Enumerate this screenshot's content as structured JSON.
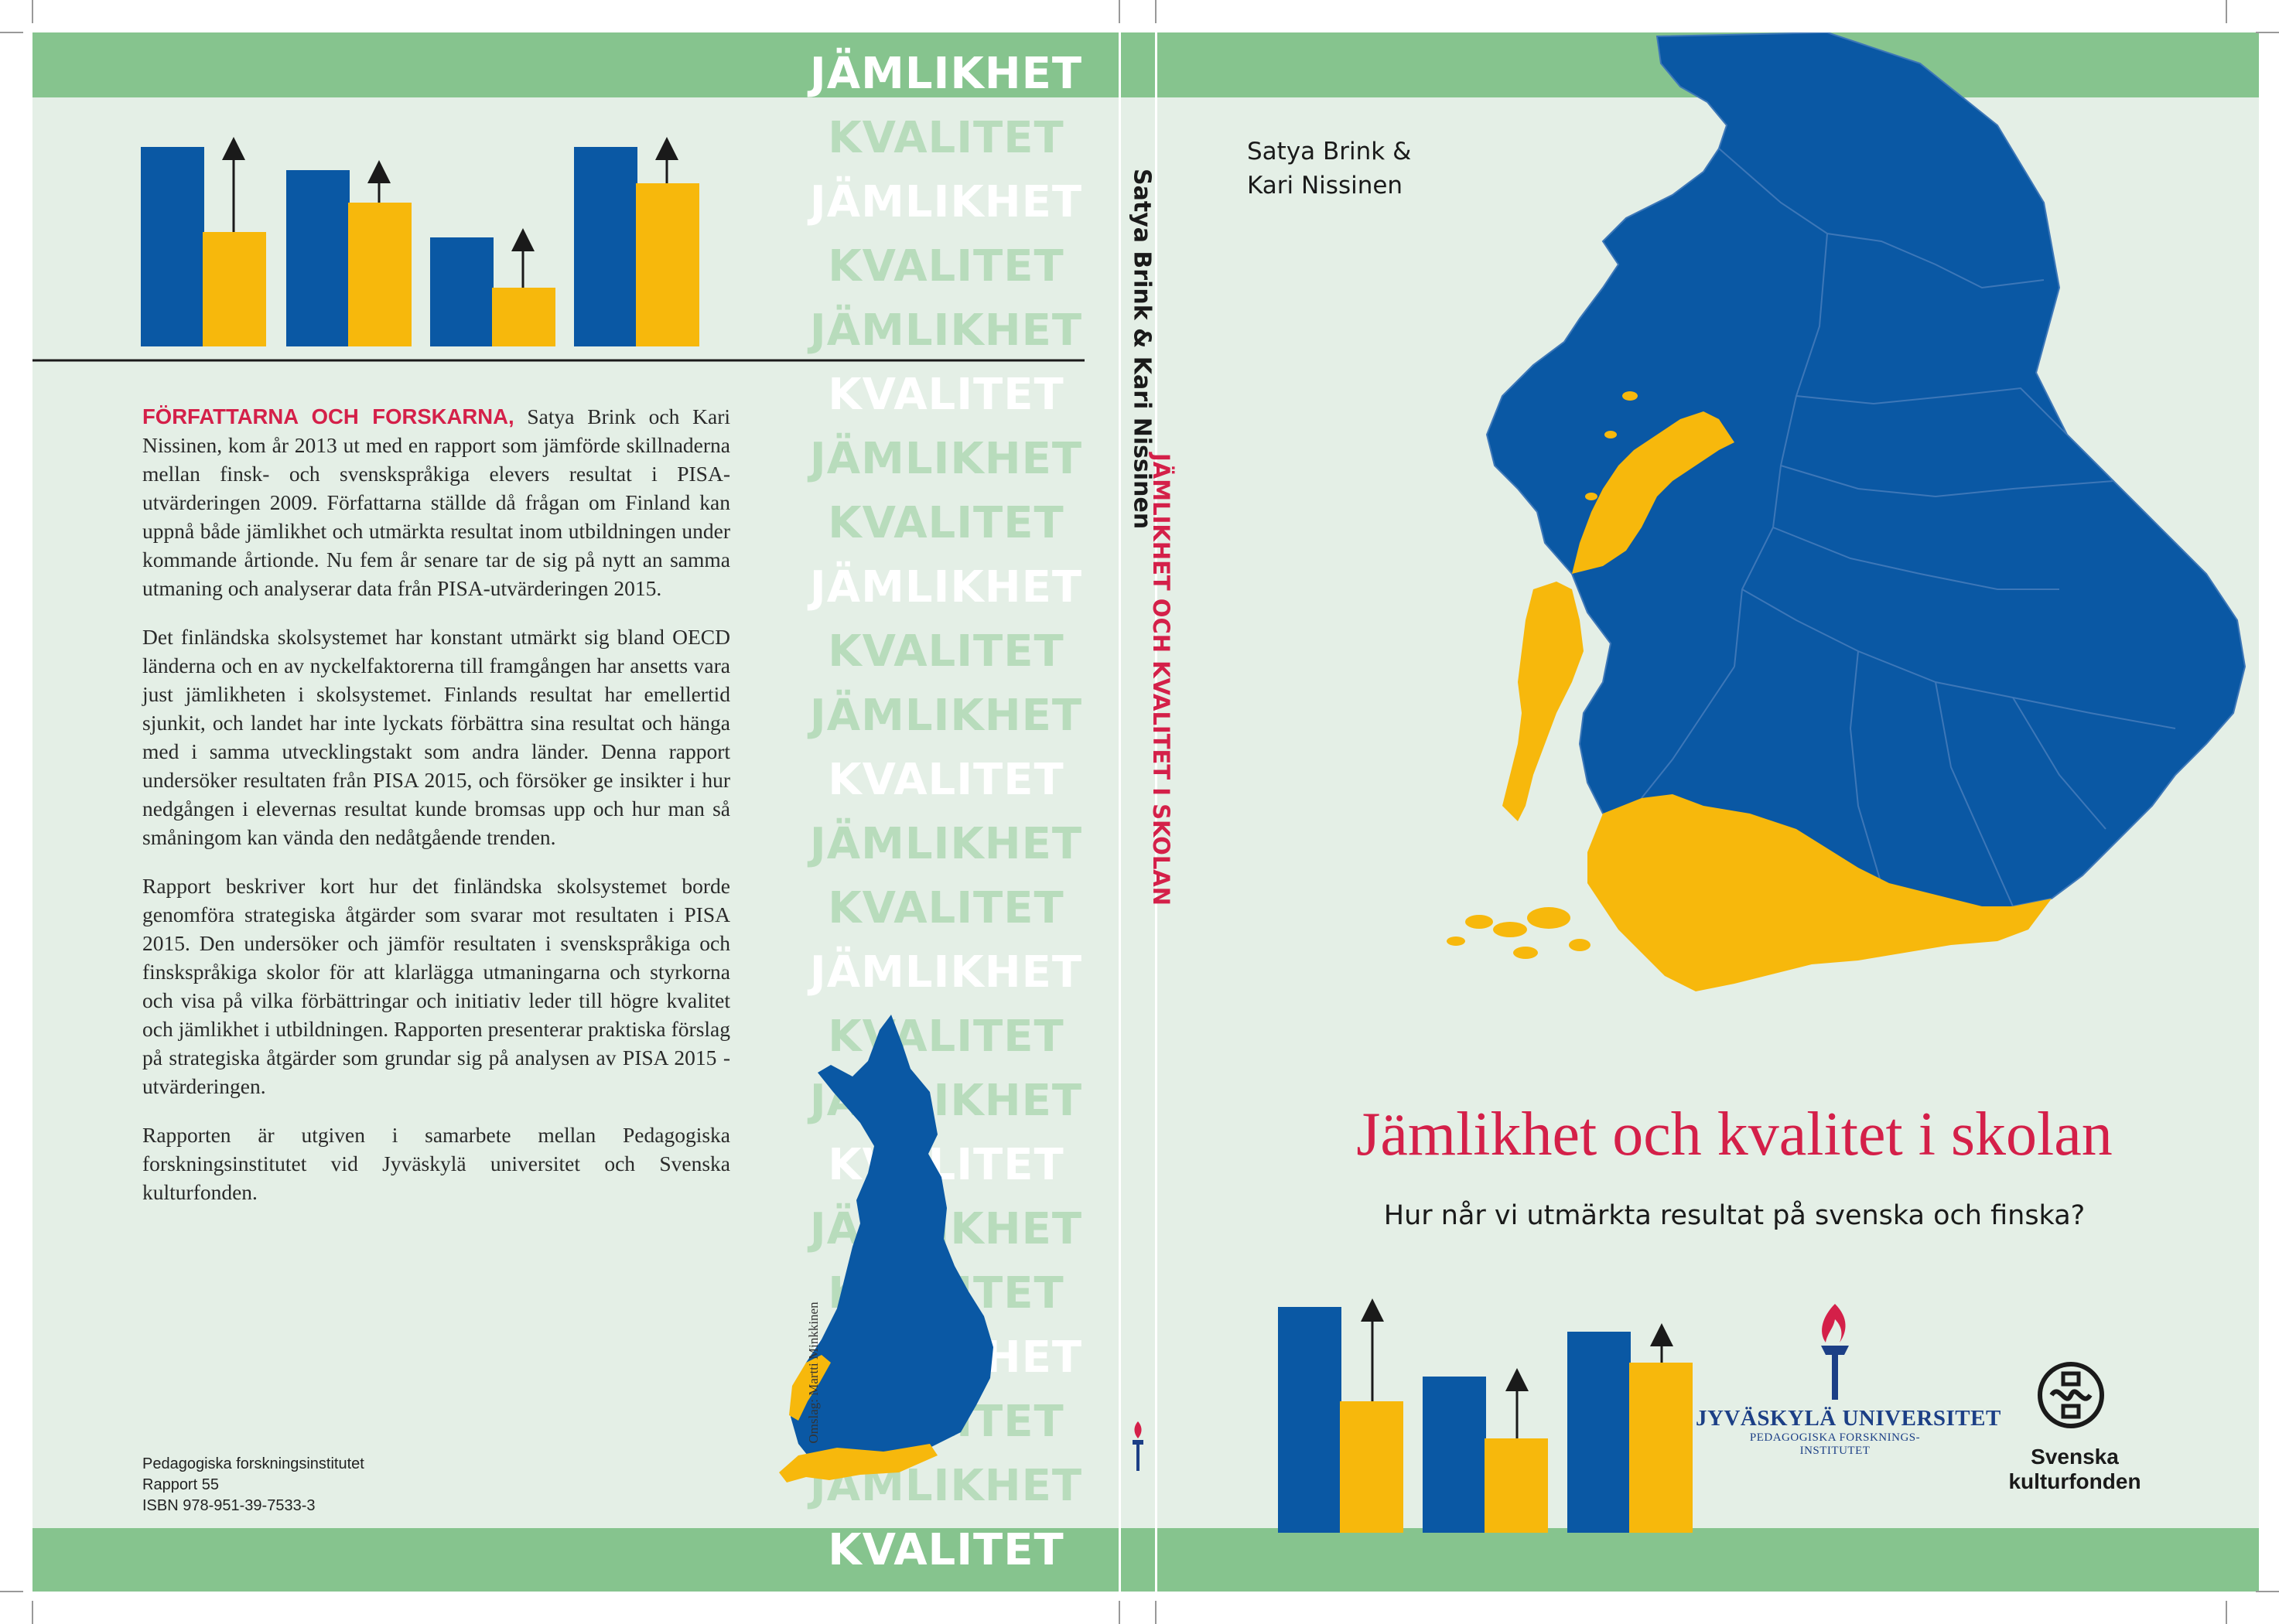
{
  "back": {
    "words": [
      "JÄMLIKHET",
      "KVALITET",
      "JÄMLIKHET",
      "KVALITET",
      "JÄMLIKHET",
      "KVALITET",
      "JÄMLIKHET",
      "KVALITET",
      "JÄMLIKHET",
      "KVALITET",
      "JÄMLIKHET",
      "KVALITET",
      "JÄMLIKHET",
      "KVALITET",
      "JÄMLIKHET",
      "KVALITET",
      "JÄMLIKHET",
      "KVALITET",
      "JÄMLIKHET",
      "KVALITET",
      "JÄMLIKHET",
      "KVALITET",
      "JÄMLIKHET",
      "KVALITET"
    ],
    "lead": "FÖRFATTARNA OCH FORSKARNA,",
    "p1_rest": " Satya Brink och Kari Nissinen, kom år 2013 ut med en rapport som jämförde skillnaderna mellan finsk- och svenskspråkiga elevers resultat i PISA-utvärderingen 2009. Författarna ställde då frågan om Finland kan uppnå både jämlikhet och utmärkta resultat inom utbildningen under kommande årtionde. Nu fem år senare tar de sig på nytt an samma utmaning och analyserar data från PISA-utvärderingen 2015.",
    "p2": "Det finländska skolsystemet har konstant utmärkt sig bland OECD länderna och en av nyckelfaktorerna till framgången har ansetts vara just jämlikheten i skolsystemet. Finlands resultat har emellertid sjunkit, och landet har inte lyckats förbättra sina resultat och hänga med i samma utvecklingstakt som andra länder. Denna rapport undersöker resultaten från PISA 2015, och försöker ge insikter i hur nedgången i elevernas resultat kunde bromsas upp och hur man så småningom kan vända den nedåtgående trenden.",
    "p3": "Rapport beskriver kort hur det finländska skolsystemet borde genomföra strategiska åtgärder som svarar mot resultaten i PISA 2015. Den undersöker och jämför resultaten i svenskspråkiga och finskspråkiga skolor för att klarlägga utmaningarna och styrkorna och visa på vilka förbättringar och initiativ leder till högre kvalitet och jämlikhet i utbildningen. Rapporten presenterar praktiska förslag på strategiska åtgärder som grundar sig på analysen av PISA 2015 -utvärderingen.",
    "p4": "Rapporten är utgiven i samarbete mellan Pedagogiska forskningsinstitutet vid Jyväskylä universitet och Svenska kulturfonden.",
    "publisher_lines": [
      "Pedagogiska forskningsinstitutet",
      "Rapport 55",
      "ISBN 978-951-39-7533-3"
    ],
    "credit": "Omslag: Martti Minkkinen"
  },
  "spine": {
    "authors": "Satya Brink & Kari Nissinen",
    "title": "JÄMLIKHET OCH KVALITET I SKOLAN"
  },
  "front": {
    "authors_line1": "Satya Brink &",
    "authors_line2": "Kari Nissinen",
    "title": "Jämlikhet och kvalitet i skolan",
    "subtitle": "Hur når vi utmärkta resultat på svenska och finska?",
    "jyu_name": "JYVÄSKYLÄ UNIVERSITET",
    "jyu_dept_1": "PEDAGOGISKA FORSKNINGS-",
    "jyu_dept_2": "INSTITUTET",
    "skf_1": "Svenska",
    "skf_2": "kulturfonden"
  },
  "colors": {
    "blue": "#0a58a4",
    "yellow": "#f7b80c",
    "red": "#d42049",
    "green": "#86c48e",
    "bg": "#e4efe6"
  }
}
